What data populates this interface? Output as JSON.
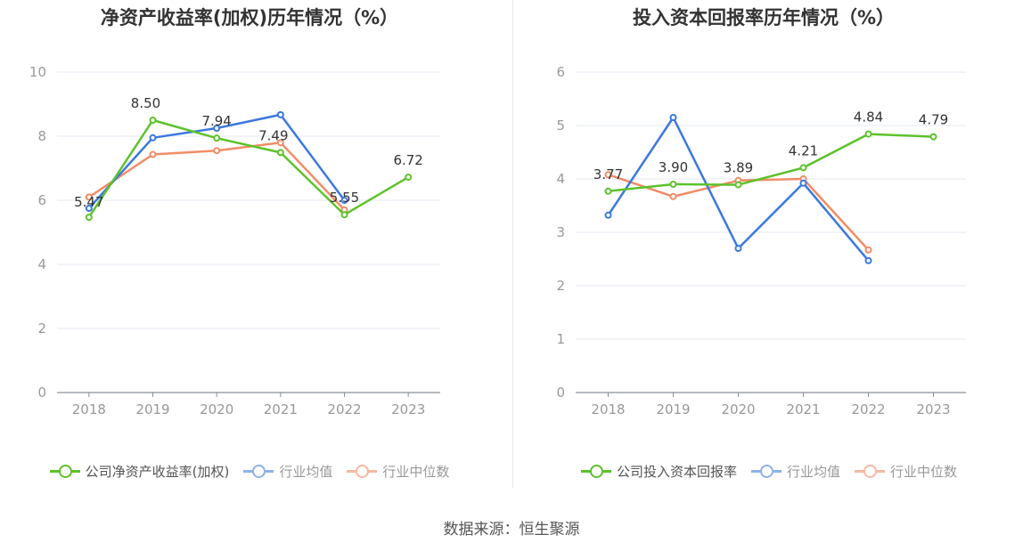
{
  "colors": {
    "company": "#5cc22b",
    "industry_avg": "#3b78e0",
    "industry_median": "#f28c65",
    "industry_avg_legend": "#8fb0ec",
    "industry_median_legend": "#f6b8a2",
    "grid": "#e5e8f3",
    "axis": "#8a8f99",
    "tick": "#999999",
    "label": "#333333"
  },
  "source": "数据来源：恒生聚源",
  "chart_data": [
    {
      "type": "line",
      "title": "净资产收益率(加权)历年情况（%）",
      "categories": [
        "2018",
        "2019",
        "2020",
        "2021",
        "2022",
        "2023"
      ],
      "ylim": [
        0,
        10
      ],
      "yticks": [
        0,
        2,
        4,
        6,
        8,
        10
      ],
      "grid": true,
      "legend_position": "bottom",
      "series": [
        {
          "name": "公司净资产收益率(加权)",
          "values": [
            5.47,
            8.5,
            7.94,
            7.49,
            5.55,
            6.72
          ],
          "labels": [
            "5.47",
            "8.50",
            "7.94",
            "7.49",
            "5.55",
            "6.72"
          ]
        },
        {
          "name": "行业均值",
          "values": [
            5.75,
            7.95,
            8.25,
            8.67,
            6.0,
            null
          ]
        },
        {
          "name": "行业中位数",
          "values": [
            6.1,
            7.43,
            7.55,
            7.8,
            5.7,
            null
          ]
        }
      ]
    },
    {
      "type": "line",
      "title": "投入资本回报率历年情况（%）",
      "categories": [
        "2018",
        "2019",
        "2020",
        "2021",
        "2022",
        "2023"
      ],
      "ylim": [
        0,
        6
      ],
      "yticks": [
        0,
        1,
        2,
        3,
        4,
        5,
        6
      ],
      "grid": true,
      "legend_position": "bottom",
      "series": [
        {
          "name": "公司投入资本回报率",
          "values": [
            3.77,
            3.9,
            3.89,
            4.21,
            4.84,
            4.79
          ],
          "labels": [
            "3.77",
            "3.90",
            "3.89",
            "4.21",
            "4.84",
            "4.79"
          ]
        },
        {
          "name": "行业均值",
          "values": [
            3.32,
            5.15,
            2.7,
            3.92,
            2.47,
            null
          ]
        },
        {
          "name": "行业中位数",
          "values": [
            4.08,
            3.67,
            3.97,
            4.0,
            2.67,
            null
          ]
        }
      ]
    }
  ]
}
